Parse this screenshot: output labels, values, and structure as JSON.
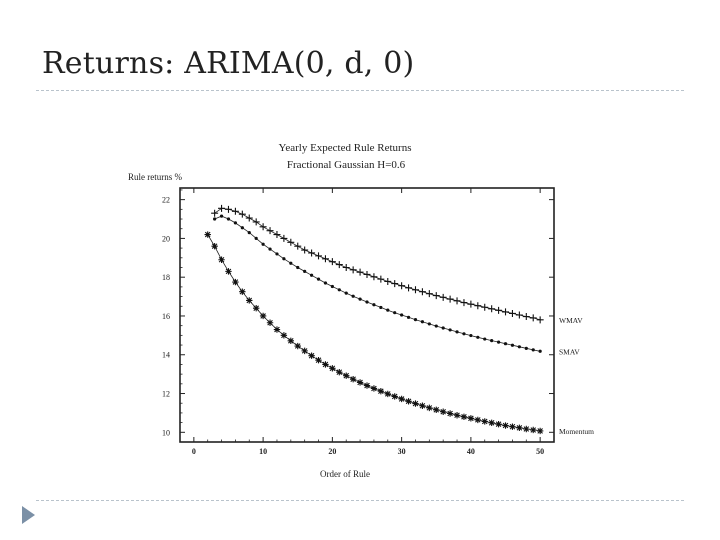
{
  "slide": {
    "title": "Returns: ARIMA(0, d, 0)"
  },
  "chart_data": {
    "type": "line",
    "title": "Yearly Expected Rule Returns",
    "subtitle": "Fractional Gaussian  H=0.6",
    "ylabel": "Rule returns %",
    "xlabel": "Order of Rule",
    "xlim": [
      -2,
      52
    ],
    "ylim": [
      9.5,
      22.6
    ],
    "x_ticks": [
      0,
      10,
      20,
      30,
      40,
      50
    ],
    "y_ticks": [
      10,
      12,
      14,
      16,
      18,
      20,
      22
    ],
    "series": [
      {
        "name": "WMAV",
        "marker": "plus",
        "x": [
          3,
          4,
          5,
          6,
          7,
          8,
          9,
          10,
          11,
          12,
          13,
          14,
          15,
          16,
          17,
          18,
          19,
          20,
          21,
          22,
          23,
          24,
          25,
          26,
          27,
          28,
          29,
          30,
          31,
          32,
          33,
          34,
          35,
          36,
          37,
          38,
          39,
          40,
          41,
          42,
          43,
          44,
          45,
          46,
          47,
          48,
          49,
          50
        ],
        "values": [
          21.3,
          21.55,
          21.5,
          21.4,
          21.25,
          21.05,
          20.85,
          20.6,
          20.4,
          20.2,
          20.0,
          19.8,
          19.6,
          19.4,
          19.25,
          19.1,
          18.95,
          18.8,
          18.65,
          18.5,
          18.38,
          18.26,
          18.14,
          18.02,
          17.9,
          17.78,
          17.67,
          17.56,
          17.45,
          17.35,
          17.25,
          17.15,
          17.05,
          16.96,
          16.87,
          16.78,
          16.69,
          16.61,
          16.53,
          16.45,
          16.37,
          16.29,
          16.21,
          16.13,
          16.05,
          15.97,
          15.9,
          15.8
        ]
      },
      {
        "name": "SMAV",
        "marker": "dot",
        "x": [
          3,
          4,
          5,
          6,
          7,
          8,
          9,
          10,
          11,
          12,
          13,
          14,
          15,
          16,
          17,
          18,
          19,
          20,
          21,
          22,
          23,
          24,
          25,
          26,
          27,
          28,
          29,
          30,
          31,
          32,
          33,
          34,
          35,
          36,
          37,
          38,
          39,
          40,
          41,
          42,
          43,
          44,
          45,
          46,
          47,
          48,
          49,
          50
        ],
        "values": [
          21.0,
          21.15,
          21.0,
          20.8,
          20.55,
          20.3,
          20.0,
          19.7,
          19.45,
          19.2,
          18.95,
          18.72,
          18.5,
          18.3,
          18.1,
          17.9,
          17.7,
          17.52,
          17.35,
          17.18,
          17.02,
          16.87,
          16.72,
          16.58,
          16.44,
          16.3,
          16.17,
          16.05,
          15.93,
          15.81,
          15.7,
          15.59,
          15.48,
          15.38,
          15.28,
          15.18,
          15.08,
          14.99,
          14.9,
          14.81,
          14.73,
          14.65,
          14.57,
          14.49,
          14.41,
          14.33,
          14.25,
          14.18
        ]
      },
      {
        "name": "Momentum",
        "marker": "star",
        "x": [
          2,
          3,
          4,
          5,
          6,
          7,
          8,
          9,
          10,
          11,
          12,
          13,
          14,
          15,
          16,
          17,
          18,
          19,
          20,
          21,
          22,
          23,
          24,
          25,
          26,
          27,
          28,
          29,
          30,
          31,
          32,
          33,
          34,
          35,
          36,
          37,
          38,
          39,
          40,
          41,
          42,
          43,
          44,
          45,
          46,
          47,
          48,
          49,
          50
        ],
        "values": [
          20.2,
          19.6,
          18.9,
          18.3,
          17.75,
          17.25,
          16.8,
          16.4,
          16.0,
          15.65,
          15.3,
          15.0,
          14.72,
          14.45,
          14.2,
          13.95,
          13.72,
          13.5,
          13.3,
          13.1,
          12.92,
          12.74,
          12.57,
          12.41,
          12.26,
          12.12,
          11.98,
          11.85,
          11.72,
          11.6,
          11.48,
          11.37,
          11.26,
          11.16,
          11.06,
          10.97,
          10.88,
          10.8,
          10.72,
          10.64,
          10.56,
          10.49,
          10.42,
          10.35,
          10.29,
          10.23,
          10.17,
          10.12,
          10.07
        ]
      }
    ]
  }
}
